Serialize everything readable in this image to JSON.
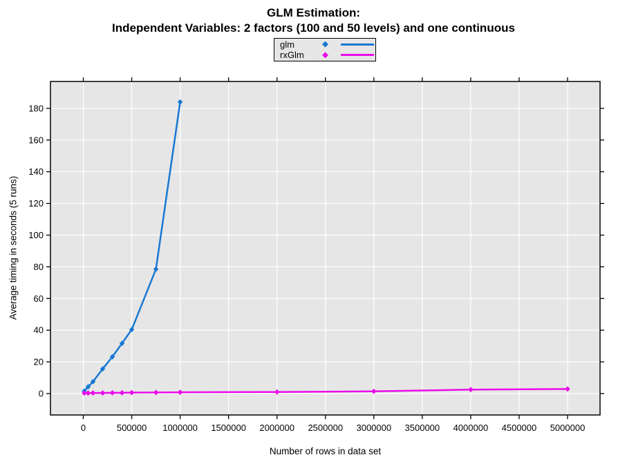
{
  "figure": {
    "title_line1": "GLM Estimation:",
    "title_line2": "Independent Variables: 2 factors (100 and 50 levels) and one continuous"
  },
  "chart_data": {
    "type": "line",
    "title": "GLM Estimation: Independent Variables: 2 factors (100 and 50 levels) and one continuous",
    "xlabel": "Number of rows in data set",
    "ylabel": "Average timing in seconds (5 runs)",
    "xlim": [
      0,
      5000000
    ],
    "ylim": [
      0,
      180
    ],
    "x_ticks": [
      0,
      500000,
      1000000,
      1500000,
      2000000,
      2500000,
      3000000,
      3500000,
      4000000,
      4500000,
      5000000
    ],
    "y_ticks": [
      0,
      20,
      40,
      60,
      80,
      100,
      120,
      140,
      160,
      180
    ],
    "grid": true,
    "plot_bg": "#E6E6E6",
    "grid_color": "#FFFFFF",
    "axis_color": "#000000",
    "legend_position": "top-center",
    "marker": "diamond",
    "series": [
      {
        "name": "glm",
        "color": "#1778D2",
        "x": [
          10000,
          50000,
          100000,
          200000,
          300000,
          400000,
          500000,
          750000,
          1000000
        ],
        "y": [
          1.6,
          4.3,
          7.5,
          15.6,
          23.2,
          31.7,
          40.4,
          78.5,
          184
        ]
      },
      {
        "name": "rxGlm",
        "color": "#EA0BEA",
        "x": [
          10000,
          50000,
          100000,
          200000,
          300000,
          400000,
          500000,
          750000,
          1000000,
          2000000,
          3000000,
          4000000,
          5000000
        ],
        "y": [
          0.3,
          0.3,
          0.4,
          0.4,
          0.5,
          0.5,
          0.6,
          0.7,
          0.8,
          1.0,
          1.4,
          2.5,
          2.9
        ]
      }
    ]
  }
}
